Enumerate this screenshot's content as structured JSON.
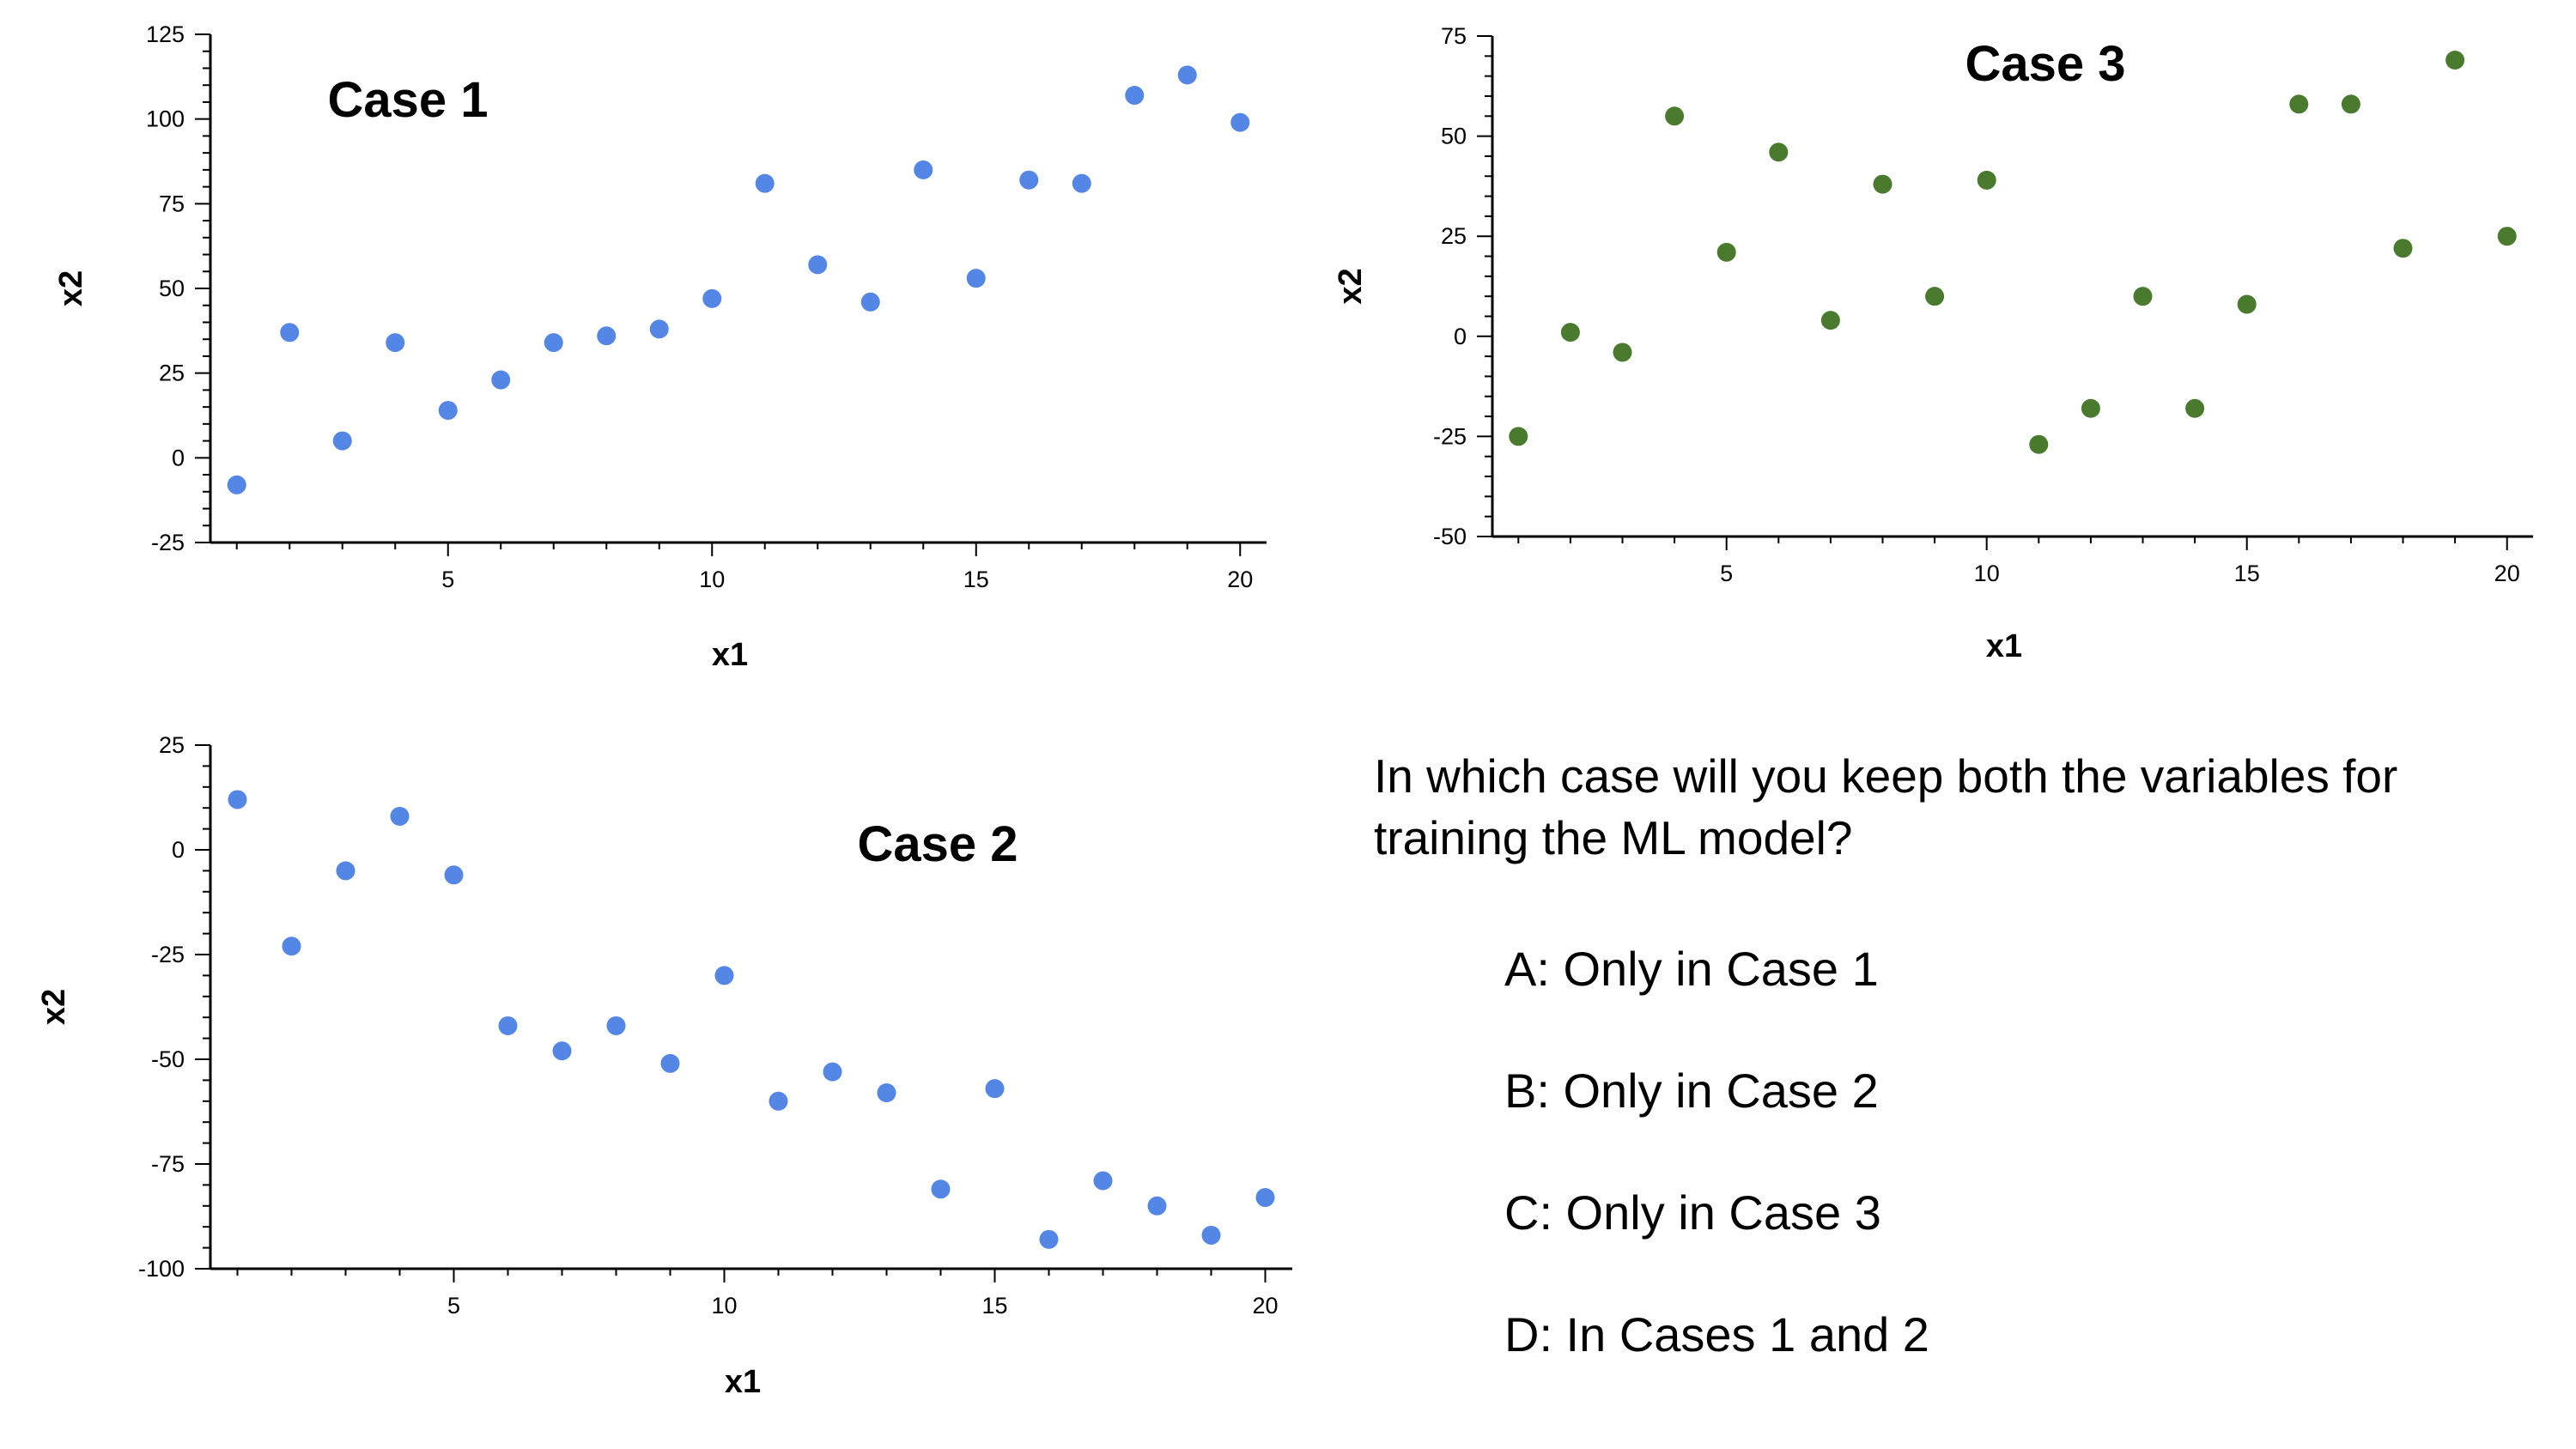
{
  "chart_data": [
    {
      "type": "scatter",
      "title": "Case 1",
      "xlabel": "x1",
      "ylabel": "x2",
      "xlim": [
        0.5,
        20.5
      ],
      "ylim": [
        -25,
        125
      ],
      "xticks": [
        5,
        10,
        15,
        20
      ],
      "yticks": [
        -25,
        0,
        25,
        50,
        75,
        100,
        125
      ],
      "grid": false,
      "legend": false,
      "color": "#5486e6",
      "series": [
        {
          "x": [
            1,
            2,
            3,
            4,
            5,
            6,
            7,
            8,
            9,
            10,
            11,
            12,
            13,
            14,
            15,
            16,
            17,
            18,
            19,
            20
          ],
          "values": [
            -8,
            37,
            5,
            34,
            14,
            23,
            34,
            36,
            38,
            47,
            81,
            57,
            46,
            85,
            53,
            82,
            81,
            107,
            113,
            99
          ]
        }
      ]
    },
    {
      "type": "scatter",
      "title": "Case 3",
      "xlabel": "x1",
      "ylabel": "x2",
      "xlim": [
        0.5,
        20.5
      ],
      "ylim": [
        -50,
        75
      ],
      "xticks": [
        5,
        10,
        15,
        20
      ],
      "yticks": [
        -50,
        -25,
        0,
        25,
        50,
        75
      ],
      "grid": false,
      "legend": false,
      "color": "#4a7a2d",
      "series": [
        {
          "x": [
            1,
            2,
            3,
            4,
            5,
            6,
            7,
            8,
            9,
            10,
            11,
            12,
            13,
            14,
            15,
            16,
            17,
            18,
            19,
            20
          ],
          "values": [
            -25,
            1,
            -4,
            55,
            21,
            46,
            4,
            38,
            10,
            39,
            -27,
            -18,
            10,
            -18,
            8,
            58,
            58,
            22,
            69,
            25
          ]
        }
      ]
    },
    {
      "type": "scatter",
      "title": "Case 2",
      "xlabel": "x1",
      "ylabel": "x2",
      "xlim": [
        0.5,
        20.5
      ],
      "ylim": [
        -100,
        25
      ],
      "xticks": [
        5,
        10,
        15,
        20
      ],
      "yticks": [
        -100,
        -75,
        -50,
        -25,
        0,
        25
      ],
      "grid": false,
      "legend": false,
      "color": "#5486e6",
      "series": [
        {
          "x": [
            1,
            2,
            3,
            4,
            5,
            6,
            7,
            8,
            9,
            10,
            11,
            12,
            13,
            14,
            15,
            16,
            17,
            18,
            19,
            20
          ],
          "values": [
            12,
            -23,
            -5,
            8,
            -6,
            -42,
            -48,
            -42,
            -51,
            -30,
            -60,
            -53,
            -58,
            -81,
            -57,
            -93,
            -79,
            -85,
            -92,
            -83
          ]
        }
      ]
    }
  ],
  "question": {
    "text": "In which case will you keep both the variables for training the ML model?",
    "options": [
      "A: Only in Case 1",
      "B: Only in Case 2",
      "C: Only in Case 3",
      "D: In Cases 1 and 2"
    ]
  }
}
